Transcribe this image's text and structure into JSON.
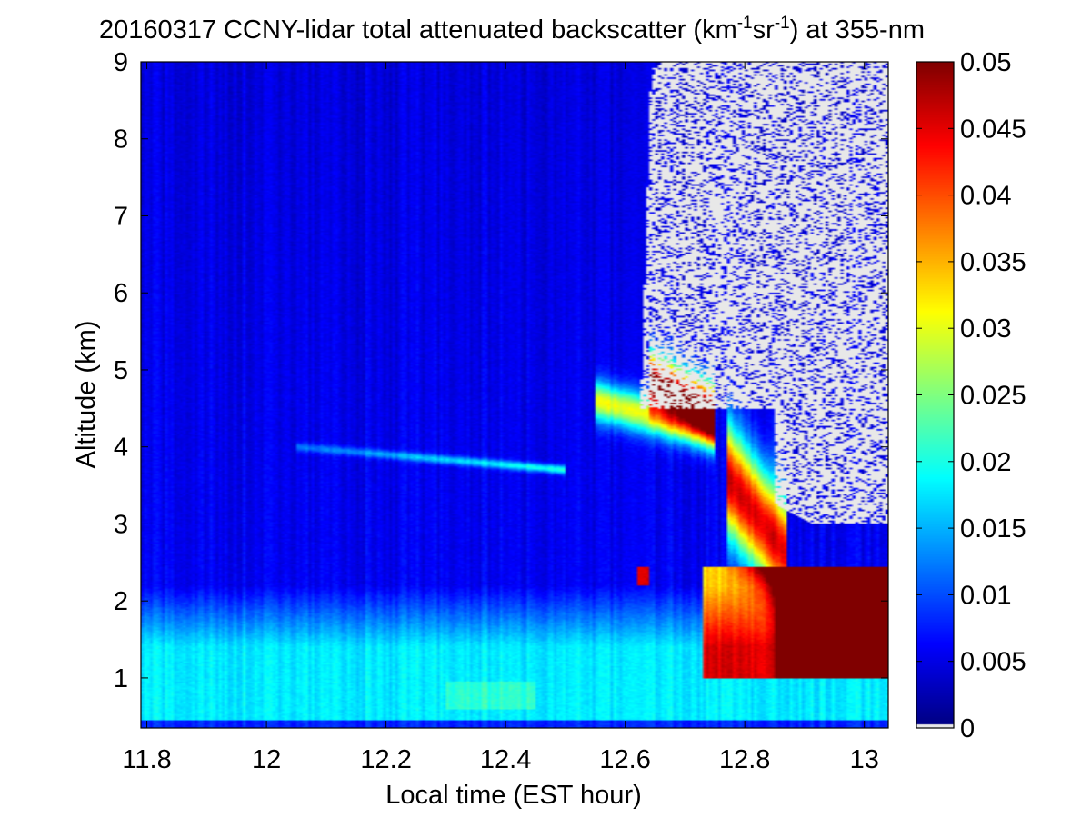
{
  "chart_data": {
    "type": "heatmap",
    "title": {
      "main": "20160317 CCNY-lidar total attenuated backscatter (km",
      "sup1": "-1",
      "mid": "sr",
      "sup2": "-1",
      "end": ") at 355-nm"
    },
    "xlabel": "Local time (EST hour)",
    "ylabel": "Altitude (km)",
    "xlim": [
      11.79,
      13.04
    ],
    "ylim": [
      0.35,
      9.0
    ],
    "x_ticks": [
      {
        "value": 11.8,
        "label": "11.8"
      },
      {
        "value": 12.0,
        "label": "12"
      },
      {
        "value": 12.2,
        "label": "12.2"
      },
      {
        "value": 12.4,
        "label": "12.4"
      },
      {
        "value": 12.6,
        "label": "12.6"
      },
      {
        "value": 12.8,
        "label": "12.8"
      },
      {
        "value": 13.0,
        "label": "13"
      }
    ],
    "y_ticks": [
      {
        "value": 1,
        "label": "1"
      },
      {
        "value": 2,
        "label": "2"
      },
      {
        "value": 3,
        "label": "3"
      },
      {
        "value": 4,
        "label": "4"
      },
      {
        "value": 5,
        "label": "5"
      },
      {
        "value": 6,
        "label": "6"
      },
      {
        "value": 7,
        "label": "7"
      },
      {
        "value": 8,
        "label": "8"
      },
      {
        "value": 9,
        "label": "9"
      }
    ],
    "colorbar": {
      "colormap": "jet",
      "range": [
        0,
        0.05
      ],
      "ticks": [
        {
          "value": 0,
          "label": "0"
        },
        {
          "value": 0.005,
          "label": "0.005"
        },
        {
          "value": 0.01,
          "label": "0.01"
        },
        {
          "value": 0.015,
          "label": "0.015"
        },
        {
          "value": 0.02,
          "label": "0.02"
        },
        {
          "value": 0.025,
          "label": "0.025"
        },
        {
          "value": 0.03,
          "label": "0.03"
        },
        {
          "value": 0.035,
          "label": "0.035"
        },
        {
          "value": 0.04,
          "label": "0.04"
        },
        {
          "value": 0.045,
          "label": "0.045"
        },
        {
          "value": 0.05,
          "label": "0.05"
        }
      ],
      "no_data_color": "#e8e8e8"
    },
    "features": {
      "boundary_layer": {
        "top_km": 1.8,
        "peak_value": 0.02
      },
      "aerosol_layer": {
        "time_start": 12.05,
        "time_end": 12.5,
        "alt_start_km": 4.0,
        "alt_end_km": 3.7,
        "value": 0.018
      },
      "cloud_upper": {
        "time_start": 12.55,
        "time_end": 12.75,
        "alt_low_km": 3.8,
        "alt_high_km": 5.3,
        "peak_value": 0.05
      },
      "cloud_lower": {
        "time_start": 12.73,
        "time_end": 13.04,
        "alt_low_km": 1.0,
        "alt_high_km": 2.5,
        "peak_value": 0.05
      },
      "noise_region": {
        "time_start": 12.62,
        "alt_low_km": 3.0,
        "alt_high_km": 9.0
      }
    }
  }
}
